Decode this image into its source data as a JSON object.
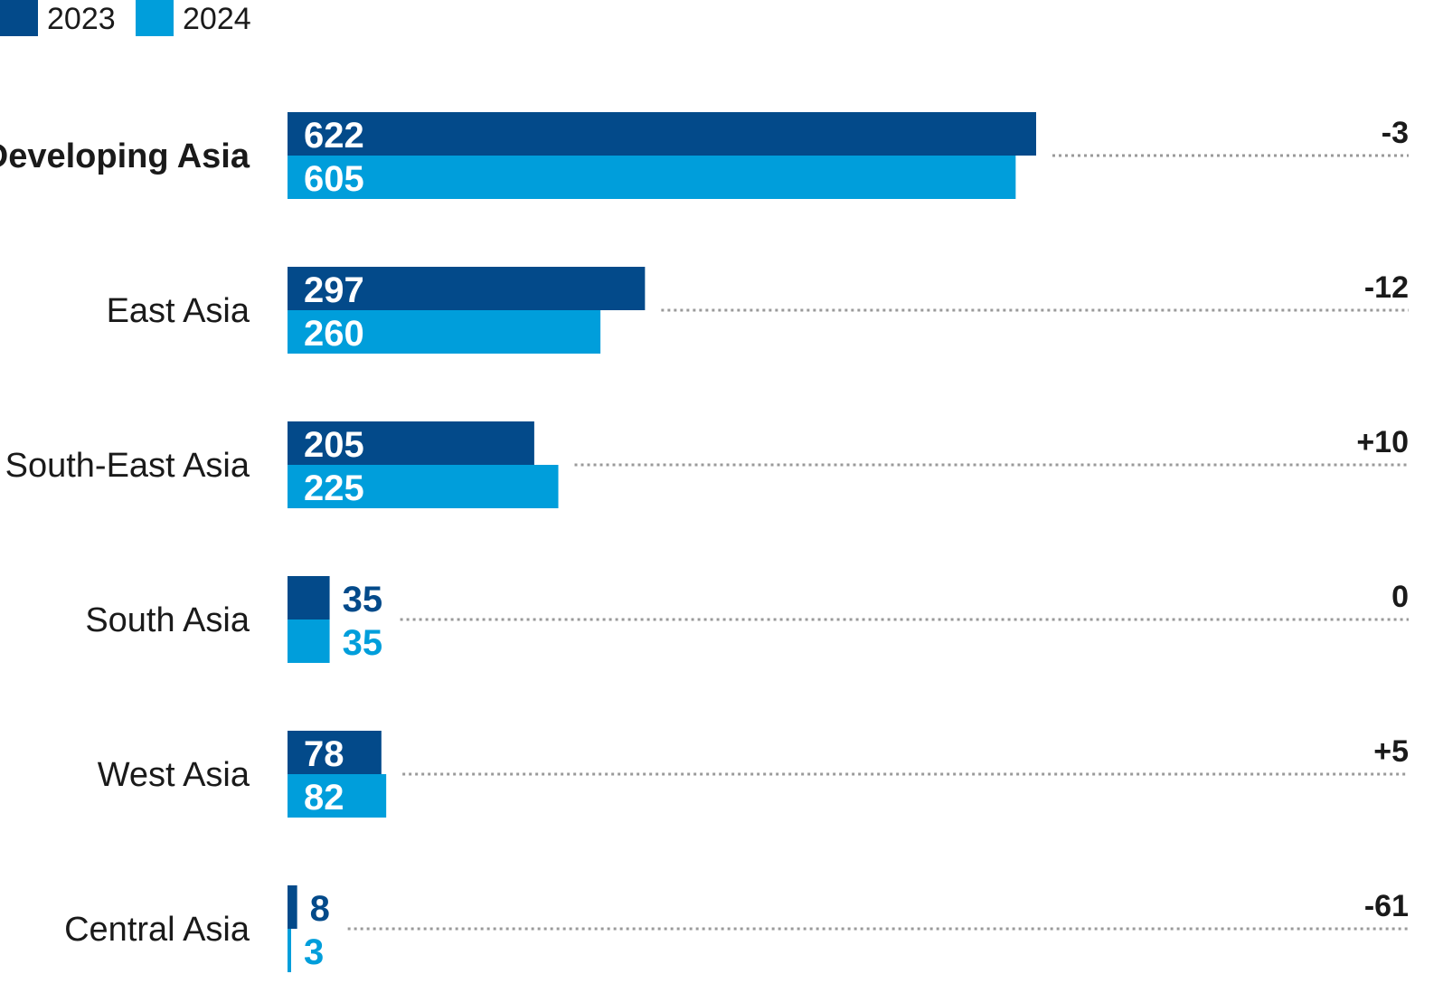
{
  "chart_data": {
    "type": "bar",
    "orientation": "horizontal",
    "legend_position": "top-left",
    "colors": {
      "2023": "#034a8a",
      "2024": "#009edb"
    },
    "categories": [
      "Developing Asia",
      "East Asia",
      "South-East Asia",
      "South Asia",
      "West Asia",
      "Central Asia"
    ],
    "series": [
      {
        "name": "2023",
        "values": [
          622,
          297,
          205,
          35,
          78,
          8
        ]
      },
      {
        "name": "2024",
        "values": [
          605,
          260,
          225,
          35,
          82,
          3
        ]
      }
    ],
    "change_labels": [
      "-3",
      "-12",
      "+10",
      "0",
      "+5",
      "-61"
    ],
    "emphasized_category": "Developing Asia",
    "xlim": [
      0,
      622
    ],
    "grid": false
  }
}
